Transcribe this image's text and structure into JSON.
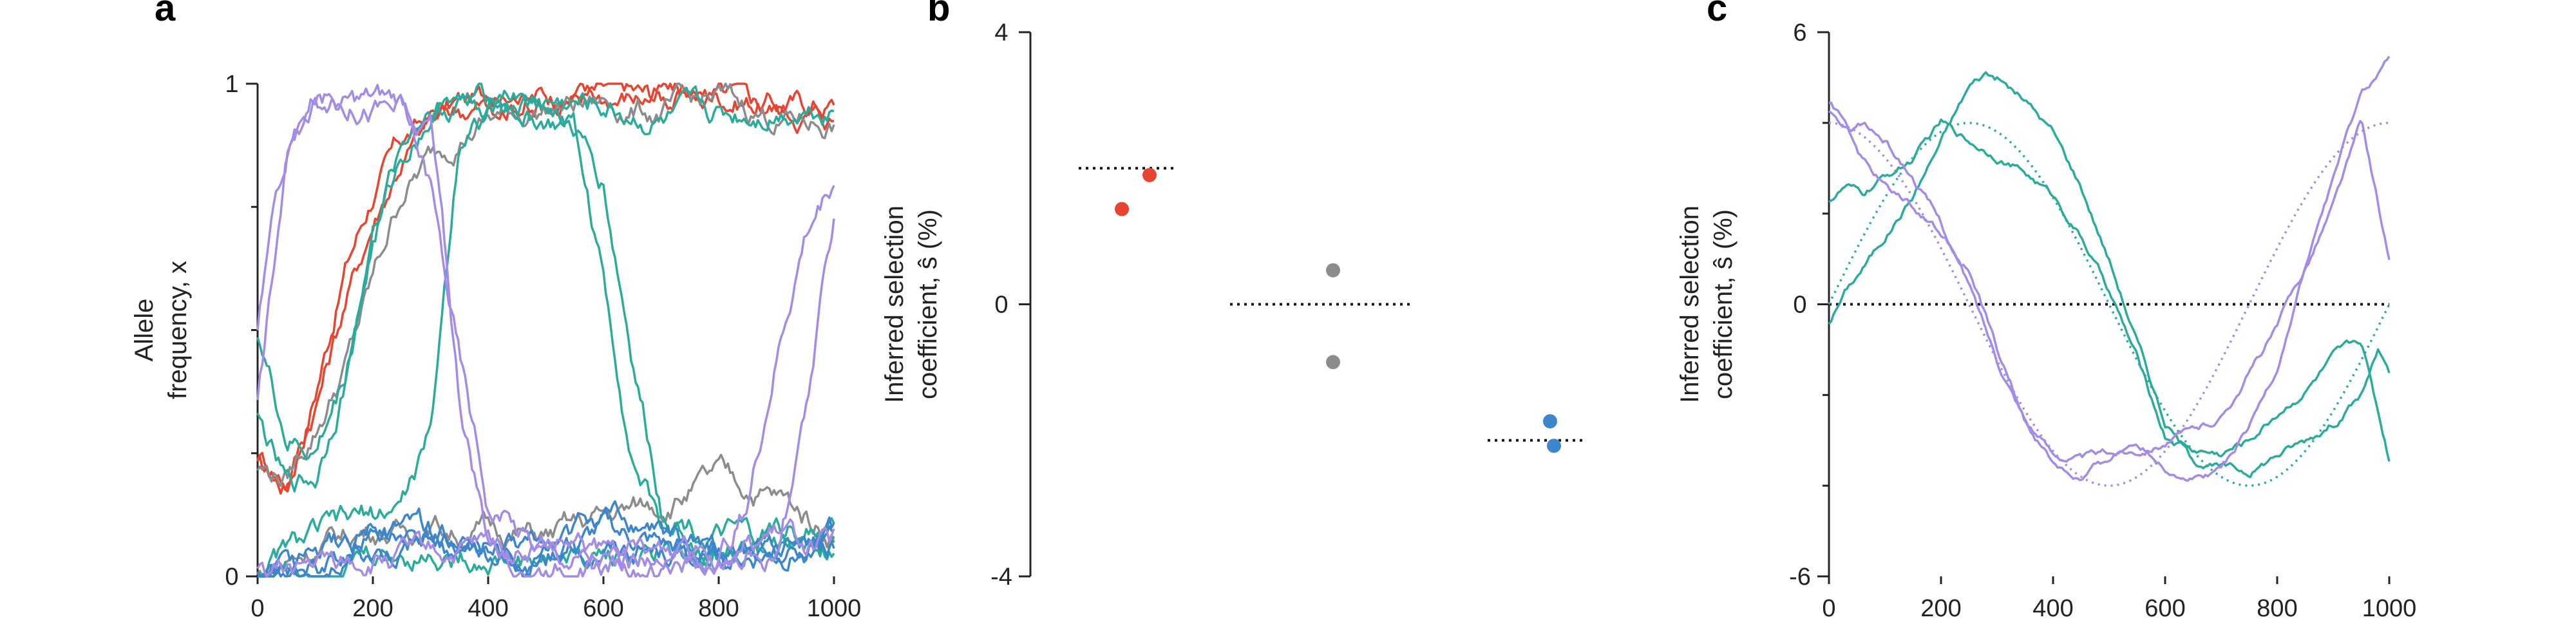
{
  "colors": {
    "red": "#e8442f",
    "gray": "#8c8c8c",
    "teal": "#2bab9b",
    "blue": "#3b86cc",
    "purple": "#a48be6",
    "axis": "#222222"
  },
  "chart_data": [
    {
      "panel": "a",
      "type": "line",
      "ylabel_line1": "Allele",
      "ylabel_line2": "frequency, x",
      "xlim": [
        0,
        1000
      ],
      "ylim": [
        0,
        1
      ],
      "xticks": [
        0,
        200,
        400,
        600,
        800,
        1000
      ],
      "yticks": [
        0,
        1
      ],
      "ytick_minor": [
        0.25,
        0.5,
        0.75
      ],
      "series": [
        {
          "color": "red",
          "x": [
            0,
            50,
            100,
            150,
            200,
            250,
            300,
            350,
            400,
            500,
            600,
            700,
            800,
            900,
            1000
          ],
          "y": [
            0.22,
            0.18,
            0.38,
            0.62,
            0.78,
            0.88,
            0.93,
            0.96,
            0.97,
            0.98,
            0.98,
            0.97,
            0.98,
            0.96,
            0.96
          ]
        },
        {
          "color": "red",
          "x": [
            0,
            50,
            100,
            150,
            200,
            250,
            300,
            350,
            400,
            500,
            600,
            700,
            800,
            900,
            1000
          ],
          "y": [
            0.25,
            0.2,
            0.35,
            0.55,
            0.72,
            0.85,
            0.92,
            0.95,
            0.96,
            0.97,
            0.97,
            0.98,
            0.97,
            0.95,
            0.93
          ]
        },
        {
          "color": "gray",
          "x": [
            0,
            50,
            100,
            150,
            200,
            250,
            300,
            350,
            400,
            500,
            600,
            700,
            800,
            900,
            1000
          ],
          "y": [
            0.22,
            0.2,
            0.3,
            0.42,
            0.6,
            0.78,
            0.85,
            0.9,
            0.93,
            0.95,
            0.96,
            0.94,
            0.97,
            0.93,
            0.92
          ]
        },
        {
          "color": "gray",
          "x": [
            0,
            50,
            100,
            150,
            200,
            250,
            300,
            350,
            400,
            500,
            600,
            700,
            800,
            900,
            1000
          ],
          "y": [
            0.0,
            0.03,
            0.06,
            0.08,
            0.1,
            0.09,
            0.11,
            0.09,
            0.1,
            0.08,
            0.12,
            0.15,
            0.2,
            0.16,
            0.09
          ]
        },
        {
          "color": "teal",
          "x": [
            0,
            50,
            100,
            150,
            200,
            250,
            300,
            350,
            400,
            500,
            600,
            700,
            800,
            900,
            1000
          ],
          "y": [
            0.32,
            0.18,
            0.2,
            0.4,
            0.68,
            0.85,
            0.94,
            0.96,
            0.97,
            0.96,
            0.95,
            0.92,
            0.93,
            0.95,
            0.96
          ]
        },
        {
          "color": "teal",
          "x": [
            0,
            50,
            100,
            150,
            200,
            250,
            300,
            350,
            400,
            450,
            500,
            550,
            600,
            650,
            700,
            800,
            900,
            1000
          ],
          "y": [
            0.5,
            0.28,
            0.25,
            0.4,
            0.7,
            0.88,
            0.96,
            0.98,
            0.96,
            0.95,
            0.93,
            0.9,
            0.8,
            0.45,
            0.15,
            0.08,
            0.06,
            0.05
          ]
        },
        {
          "color": "teal",
          "x": [
            0,
            50,
            100,
            150,
            200,
            250,
            300,
            350,
            400,
            450,
            500,
            550,
            600,
            650,
            700,
            800,
            900,
            1000
          ],
          "y": [
            0.0,
            0.05,
            0.08,
            0.1,
            0.12,
            0.15,
            0.28,
            0.9,
            0.95,
            0.97,
            0.96,
            0.92,
            0.6,
            0.25,
            0.1,
            0.06,
            0.05,
            0.04
          ]
        },
        {
          "color": "teal",
          "x": [
            0,
            100,
            200,
            300,
            400,
            500,
            600,
            700,
            800,
            900,
            1000
          ],
          "y": [
            0.0,
            0.03,
            0.04,
            0.05,
            0.04,
            0.03,
            0.05,
            0.04,
            0.05,
            0.08,
            0.1
          ]
        },
        {
          "color": "blue",
          "x": [
            0,
            100,
            200,
            300,
            400,
            500,
            600,
            700,
            800,
            900,
            1000
          ],
          "y": [
            0.0,
            0.03,
            0.1,
            0.08,
            0.05,
            0.04,
            0.09,
            0.06,
            0.03,
            0.05,
            0.07
          ]
        },
        {
          "color": "blue",
          "x": [
            0,
            100,
            200,
            300,
            400,
            500,
            600,
            700,
            800,
            900,
            1000
          ],
          "y": [
            0.0,
            0.04,
            0.08,
            0.06,
            0.03,
            0.06,
            0.12,
            0.08,
            0.05,
            0.06,
            0.08
          ]
        },
        {
          "color": "blue",
          "x": [
            0,
            100,
            200,
            300,
            400,
            500,
            600,
            700,
            800,
            900,
            1000
          ],
          "y": [
            0.0,
            0.02,
            0.05,
            0.09,
            0.07,
            0.03,
            0.06,
            0.05,
            0.04,
            0.03,
            0.06
          ]
        },
        {
          "color": "purple",
          "x": [
            0,
            30,
            60,
            100,
            150,
            200,
            250,
            300,
            320,
            350,
            400,
            450,
            500,
            600,
            700,
            800,
            850,
            900,
            950,
            1000
          ],
          "y": [
            0.5,
            0.75,
            0.92,
            0.96,
            0.95,
            0.96,
            0.96,
            0.92,
            0.7,
            0.35,
            0.08,
            0.03,
            0.02,
            0.02,
            0.03,
            0.05,
            0.15,
            0.45,
            0.7,
            0.82
          ]
        },
        {
          "color": "purple",
          "x": [
            0,
            50,
            100,
            150,
            200,
            250,
            300,
            350,
            400,
            500,
            600,
            700,
            800,
            850,
            900,
            950,
            1000
          ],
          "y": [
            0.35,
            0.85,
            0.96,
            0.97,
            0.96,
            0.95,
            0.8,
            0.45,
            0.15,
            0.05,
            0.04,
            0.03,
            0.03,
            0.04,
            0.05,
            0.3,
            0.72
          ]
        },
        {
          "color": "purple",
          "x": [
            0,
            100,
            200,
            300,
            400,
            500,
            600,
            700,
            800,
            900,
            1000
          ],
          "y": [
            0.0,
            0.02,
            0.03,
            0.04,
            0.05,
            0.06,
            0.04,
            0.05,
            0.06,
            0.08,
            0.06
          ]
        }
      ]
    },
    {
      "panel": "b",
      "type": "scatter",
      "ylabel_line1": "Inferred selection",
      "ylabel_line2": "coefficient, ŝ (%)",
      "ylim": [
        -4,
        4
      ],
      "yticks": [
        -4,
        0,
        4
      ],
      "categories": [
        "red",
        "gray",
        "blue"
      ],
      "true_values": [
        2.0,
        0.0,
        -2.0
      ],
      "points": [
        {
          "color": "red",
          "cat": 0,
          "offset": 0.35,
          "y": 1.9
        },
        {
          "color": "red",
          "cat": 0,
          "offset": -0.08,
          "y": 1.4
        },
        {
          "color": "gray",
          "cat": 1,
          "offset": 0.2,
          "y": 0.5
        },
        {
          "color": "gray",
          "cat": 1,
          "offset": 0.2,
          "y": -0.85
        },
        {
          "color": "blue",
          "cat": 2,
          "offset": 0.22,
          "y": -1.72
        },
        {
          "color": "blue",
          "cat": 2,
          "offset": 0.28,
          "y": -2.08
        }
      ]
    },
    {
      "panel": "c",
      "type": "line",
      "ylabel_line1": "Inferred selection",
      "ylabel_line2": "coefficient, ŝ (%)",
      "xlim": [
        0,
        1000
      ],
      "ylim": [
        -6,
        6
      ],
      "xticks": [
        0,
        200,
        400,
        600,
        800,
        1000
      ],
      "yticks": [
        -6,
        0,
        6
      ],
      "ytick_minor": [
        -4,
        -2,
        2,
        4
      ],
      "true_teal": {
        "color": "teal",
        "amplitude": 4.0,
        "phase_x": 250,
        "period": 1000
      },
      "true_purple": {
        "color": "purple",
        "amplitude": 4.0,
        "phase_x": 0,
        "period": 1000,
        "kind": "cos"
      },
      "series": [
        {
          "color": "teal",
          "x": [
            0,
            30,
            60,
            100,
            150,
            200,
            250,
            280,
            300,
            350,
            400,
            450,
            500,
            550,
            600,
            650,
            700,
            750,
            800,
            850,
            900,
            950,
            980,
            1000
          ],
          "y": [
            -0.4,
            0.3,
            0.8,
            1.5,
            2.4,
            3.6,
            4.8,
            5.1,
            5.0,
            4.5,
            3.8,
            2.6,
            1.0,
            -0.8,
            -2.6,
            -3.4,
            -3.6,
            -3.7,
            -3.3,
            -3.0,
            -2.6,
            -2.0,
            -1.0,
            -1.6
          ]
        },
        {
          "color": "teal",
          "x": [
            0,
            30,
            60,
            100,
            150,
            200,
            250,
            300,
            350,
            400,
            450,
            500,
            550,
            600,
            650,
            700,
            750,
            800,
            850,
            900,
            950,
            1000
          ],
          "y": [
            2.3,
            2.6,
            2.4,
            2.8,
            3.2,
            4.0,
            3.6,
            3.3,
            2.9,
            2.4,
            1.5,
            0.3,
            -1.2,
            -2.9,
            -3.2,
            -3.3,
            -3.0,
            -2.4,
            -1.9,
            -1.2,
            -0.8,
            -3.4
          ]
        },
        {
          "color": "purple",
          "x": [
            0,
            30,
            60,
            100,
            150,
            200,
            250,
            300,
            350,
            400,
            450,
            500,
            550,
            600,
            650,
            700,
            750,
            800,
            850,
            900,
            950,
            1000
          ],
          "y": [
            4.2,
            3.8,
            4.0,
            3.6,
            2.8,
            1.8,
            0.4,
            -1.2,
            -2.5,
            -3.3,
            -3.4,
            -3.3,
            -3.2,
            -3.0,
            -2.8,
            -2.5,
            -1.5,
            -0.5,
            0.8,
            2.2,
            4.0,
            1.0
          ]
        },
        {
          "color": "purple",
          "x": [
            0,
            30,
            60,
            100,
            150,
            200,
            250,
            300,
            350,
            400,
            450,
            500,
            550,
            600,
            650,
            700,
            750,
            800,
            850,
            900,
            950,
            1000
          ],
          "y": [
            4.4,
            4.0,
            3.2,
            2.6,
            2.2,
            1.6,
            0.8,
            -1.0,
            -2.6,
            -3.5,
            -3.9,
            -3.4,
            -3.0,
            -3.6,
            -3.8,
            -3.6,
            -2.8,
            -1.4,
            0.8,
            2.8,
            4.6,
            5.4
          ]
        }
      ]
    }
  ]
}
